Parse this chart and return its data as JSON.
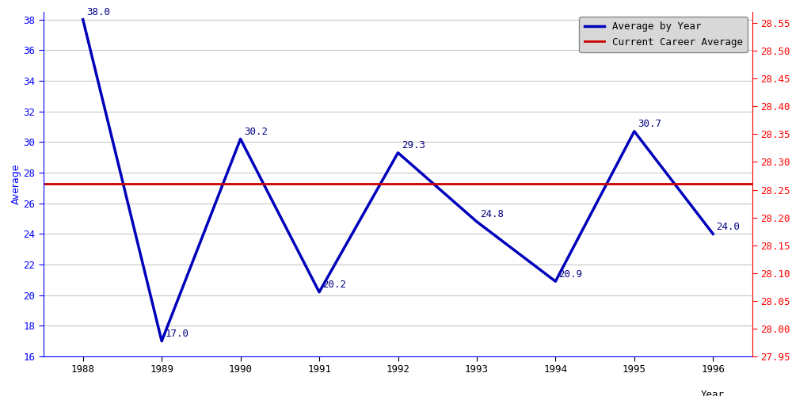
{
  "years": [
    1988,
    1989,
    1990,
    1991,
    1992,
    1993,
    1994,
    1995,
    1996
  ],
  "averages": [
    38.0,
    17.0,
    30.2,
    20.2,
    29.3,
    24.8,
    20.9,
    30.7,
    24.0
  ],
  "career_average": 27.3,
  "xlabel": "Year",
  "ylabel": "Average",
  "ylim_left": [
    16,
    38.5
  ],
  "right_ylim": [
    27.95,
    28.57
  ],
  "right_yticks": [
    27.95,
    28.0,
    28.05,
    28.1,
    28.15,
    28.2,
    28.25,
    28.3,
    28.35,
    28.4,
    28.45,
    28.5,
    28.55
  ],
  "left_yticks": [
    16,
    18,
    20,
    22,
    24,
    26,
    28,
    30,
    32,
    34,
    36,
    38
  ],
  "line_color": "#0000bb",
  "career_line_color": "#cc0000",
  "bg_color": "#ffffff",
  "grid_color": "#c8c8c8",
  "legend_labels": [
    "Average by Year",
    "Current Career Average"
  ],
  "line_width": 2.5,
  "font_size": 9,
  "annotation_fontsize": 9,
  "annotation_color": "#000080"
}
